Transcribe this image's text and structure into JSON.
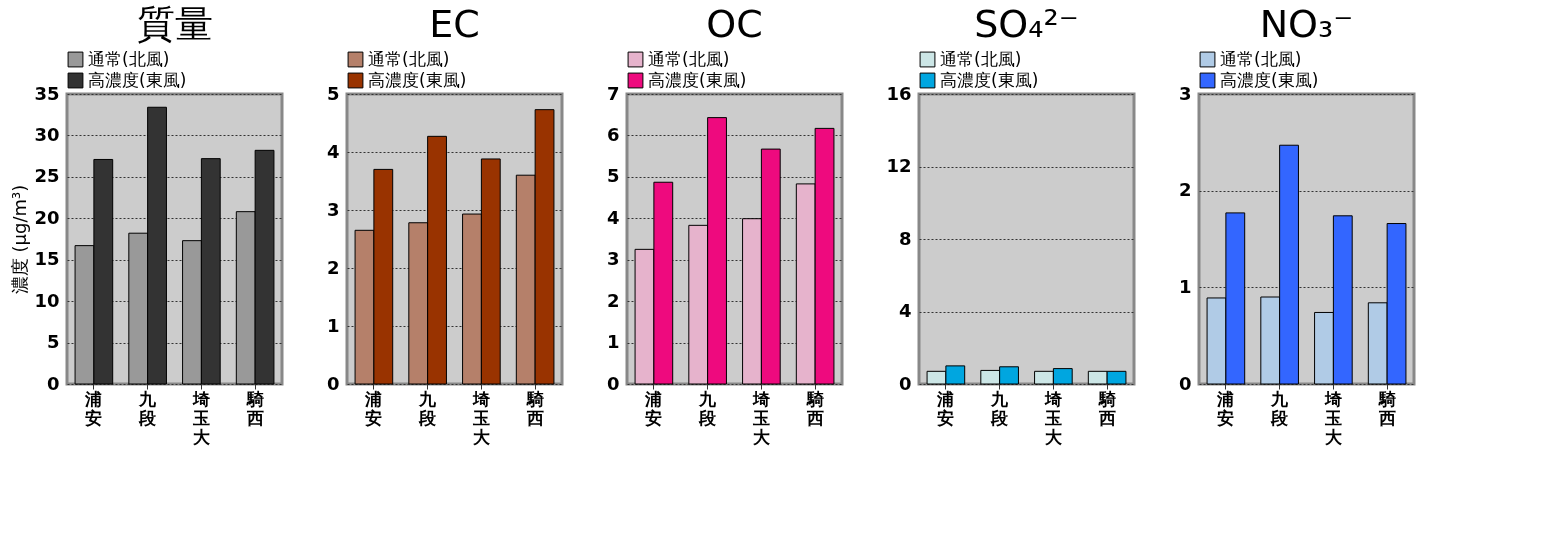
{
  "chart_data": [
    {
      "type": "bar",
      "title": "質量",
      "ylabel": "濃度 (μg/m³)",
      "categories": [
        "浦安",
        "九段",
        "埼玉大",
        "騎西"
      ],
      "ylim": [
        0,
        35
      ],
      "yticks": [
        0,
        5,
        10,
        15,
        20,
        25,
        30,
        35
      ],
      "grid": "y",
      "legend": "top",
      "series": [
        {
          "name": "通常(北風)",
          "color": "#999999",
          "values": [
            16.7,
            18.2,
            17.3,
            20.8
          ]
        },
        {
          "name": "高濃度(東風)",
          "color": "#333333",
          "values": [
            27.1,
            33.4,
            27.2,
            28.2
          ]
        }
      ]
    },
    {
      "type": "bar",
      "title": "EC",
      "categories": [
        "浦安",
        "九段",
        "埼玉大",
        "騎西"
      ],
      "ylim": [
        0,
        5
      ],
      "yticks": [
        0,
        1,
        2,
        3,
        4,
        5
      ],
      "grid": "y",
      "legend": "top",
      "series": [
        {
          "name": "通常(北風)",
          "color": "#b5806a",
          "values": [
            2.65,
            2.78,
            2.93,
            3.6
          ]
        },
        {
          "name": "高濃度(東風)",
          "color": "#993300",
          "values": [
            3.7,
            4.27,
            3.88,
            4.73
          ]
        }
      ]
    },
    {
      "type": "bar",
      "title": "OC",
      "categories": [
        "浦安",
        "九段",
        "埼玉大",
        "騎西"
      ],
      "ylim": [
        0,
        7
      ],
      "yticks": [
        0,
        1,
        2,
        3,
        4,
        5,
        6,
        7
      ],
      "grid": "y",
      "legend": "top",
      "series": [
        {
          "name": "通常(北風)",
          "color": "#e6b3cc",
          "values": [
            3.25,
            3.83,
            3.99,
            4.83
          ]
        },
        {
          "name": "高濃度(東風)",
          "color": "#ee0a7e",
          "values": [
            4.87,
            6.43,
            5.67,
            6.17
          ]
        }
      ]
    },
    {
      "type": "bar",
      "title": "SO₄²⁻",
      "categories": [
        "浦安",
        "九段",
        "埼玉大",
        "騎西"
      ],
      "ylim": [
        0,
        16
      ],
      "yticks": [
        0,
        4,
        8,
        12,
        16
      ],
      "grid": "y",
      "legend": "top",
      "series": [
        {
          "name": "通常(北風)",
          "color": "#cce6e6",
          "values": [
            0.7,
            0.75,
            0.7,
            0.7
          ]
        },
        {
          "name": "高濃度(東風)",
          "color": "#00a6e0",
          "values": [
            1.0,
            0.95,
            0.85,
            0.7
          ]
        }
      ]
    },
    {
      "type": "bar",
      "title": "NO₃⁻",
      "categories": [
        "浦安",
        "九段",
        "埼玉大",
        "騎西"
      ],
      "ylim": [
        0,
        3
      ],
      "yticks": [
        0,
        1,
        2,
        3
      ],
      "grid": "y",
      "legend": "top",
      "series": [
        {
          "name": "通常(北風)",
          "color": "#b0cbe6",
          "values": [
            0.89,
            0.9,
            0.74,
            0.84
          ]
        },
        {
          "name": "高濃度(東風)",
          "color": "#3366ff",
          "values": [
            1.77,
            2.47,
            1.74,
            1.66
          ]
        }
      ]
    }
  ]
}
